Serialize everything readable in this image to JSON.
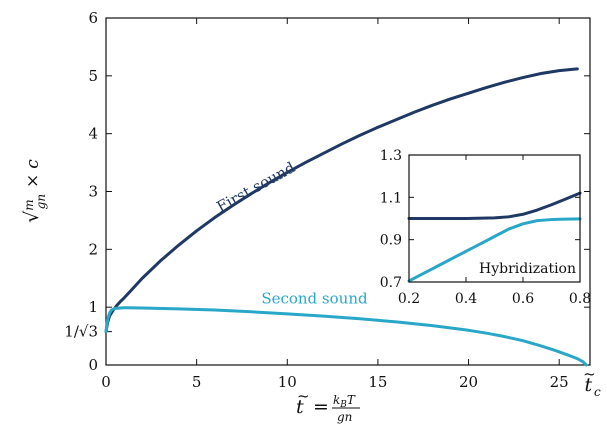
{
  "chart_data": [
    {
      "id": "main",
      "type": "line",
      "xlabel": "t̃ = k_B T / gn",
      "ylabel": "√(m/gn) × c",
      "xlim": [
        0,
        26.7
      ],
      "ylim": [
        0,
        6
      ],
      "xticks": [
        0,
        5,
        10,
        15,
        20,
        25
      ],
      "xtick_labels": [
        "0",
        "5",
        "10",
        "15",
        "20",
        "25"
      ],
      "xtick_extra_label": "t̃c",
      "xtick_extra_value": 26.5,
      "yticks": [
        0,
        1,
        2,
        3,
        4,
        5,
        6
      ],
      "ytick_labels": [
        "0",
        "1",
        "2",
        "3",
        "4",
        "5",
        "6"
      ],
      "ytick_extra_label": "1/√3",
      "ytick_extra_value": 0.577,
      "grid": false,
      "series": [
        {
          "name": "First sound",
          "color": "#1f3864",
          "points": [
            [
              0.0,
              0.577
            ],
            [
              0.1,
              0.75
            ],
            [
              0.2,
              0.85
            ],
            [
              0.4,
              0.95
            ],
            [
              0.6,
              1.03
            ],
            [
              0.8,
              1.1
            ],
            [
              1.0,
              1.16
            ],
            [
              1.5,
              1.33
            ],
            [
              2.0,
              1.5
            ],
            [
              3.0,
              1.8
            ],
            [
              4.0,
              2.07
            ],
            [
              5.0,
              2.32
            ],
            [
              6.0,
              2.55
            ],
            [
              7.0,
              2.76
            ],
            [
              8.0,
              2.96
            ],
            [
              9.0,
              3.15
            ],
            [
              10.0,
              3.33
            ],
            [
              11.0,
              3.5
            ],
            [
              12.0,
              3.66
            ],
            [
              13.0,
              3.82
            ],
            [
              14.0,
              3.97
            ],
            [
              15.0,
              4.11
            ],
            [
              16.0,
              4.24
            ],
            [
              17.0,
              4.37
            ],
            [
              18.0,
              4.49
            ],
            [
              19.0,
              4.6
            ],
            [
              20.0,
              4.7
            ],
            [
              21.0,
              4.8
            ],
            [
              22.0,
              4.89
            ],
            [
              23.0,
              4.97
            ],
            [
              24.0,
              5.04
            ],
            [
              25.0,
              5.09
            ],
            [
              26.0,
              5.12
            ]
          ]
        },
        {
          "name": "Second sound",
          "color": "#29a7c8",
          "points": [
            [
              0.0,
              0.577
            ],
            [
              0.05,
              0.7
            ],
            [
              0.1,
              0.8
            ],
            [
              0.2,
              0.9
            ],
            [
              0.3,
              0.95
            ],
            [
              0.5,
              0.98
            ],
            [
              1.0,
              0.99
            ],
            [
              2.0,
              0.985
            ],
            [
              4.0,
              0.97
            ],
            [
              6.0,
              0.95
            ],
            [
              8.0,
              0.92
            ],
            [
              10.0,
              0.885
            ],
            [
              12.0,
              0.845
            ],
            [
              14.0,
              0.8
            ],
            [
              16.0,
              0.745
            ],
            [
              18.0,
              0.68
            ],
            [
              20.0,
              0.6
            ],
            [
              21.0,
              0.55
            ],
            [
              22.0,
              0.49
            ],
            [
              23.0,
              0.42
            ],
            [
              24.0,
              0.33
            ],
            [
              24.8,
              0.25
            ],
            [
              25.5,
              0.17
            ],
            [
              26.0,
              0.11
            ],
            [
              26.3,
              0.06
            ],
            [
              26.5,
              0.0
            ]
          ]
        }
      ],
      "annotations": [
        {
          "text": "First sound",
          "x": 8.4,
          "y": 3.0,
          "angle": -29,
          "color": "#1f3864"
        },
        {
          "text": "Second sound",
          "x": 11.5,
          "y": 1.06,
          "angle": 0,
          "color": "#29a7c8"
        }
      ]
    },
    {
      "id": "inset",
      "type": "line",
      "title": "Hybridization",
      "xlim": [
        0.2,
        0.8
      ],
      "ylim": [
        0.7,
        1.3
      ],
      "xticks": [
        0.2,
        0.4,
        0.6,
        0.8
      ],
      "xtick_labels": [
        "0.2",
        "0.4",
        "0.6",
        "0.8"
      ],
      "yticks": [
        0.7,
        0.9,
        1.1,
        1.3
      ],
      "ytick_labels": [
        "0.7",
        "0.9",
        "1.1",
        "1.3"
      ],
      "grid": false,
      "series": [
        {
          "name": "First sound",
          "color": "#1f3864",
          "points": [
            [
              0.2,
              1.0
            ],
            [
              0.3,
              1.0
            ],
            [
              0.4,
              1.0
            ],
            [
              0.5,
              1.003
            ],
            [
              0.55,
              1.008
            ],
            [
              0.6,
              1.02
            ],
            [
              0.65,
              1.04
            ],
            [
              0.7,
              1.065
            ],
            [
              0.75,
              1.092
            ],
            [
              0.8,
              1.12
            ]
          ]
        },
        {
          "name": "Second sound",
          "color": "#29a7c8",
          "points": [
            [
              0.2,
              0.705
            ],
            [
              0.25,
              0.74
            ],
            [
              0.3,
              0.775
            ],
            [
              0.35,
              0.81
            ],
            [
              0.4,
              0.845
            ],
            [
              0.45,
              0.88
            ],
            [
              0.5,
              0.915
            ],
            [
              0.55,
              0.95
            ],
            [
              0.6,
              0.975
            ],
            [
              0.65,
              0.99
            ],
            [
              0.7,
              0.995
            ],
            [
              0.75,
              0.997
            ],
            [
              0.8,
              0.998
            ]
          ]
        }
      ]
    }
  ]
}
